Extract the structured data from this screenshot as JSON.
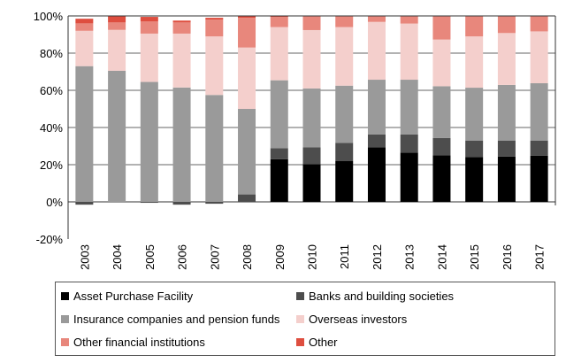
{
  "chart_data": {
    "type": "bar",
    "stacked": true,
    "title": "",
    "xlabel": "",
    "ylabel": "",
    "ylim": [
      -20,
      100
    ],
    "yticks": [
      "-20%",
      "0%",
      "20%",
      "40%",
      "60%",
      "80%",
      "100%"
    ],
    "ytick_values": [
      -20,
      0,
      20,
      40,
      60,
      80,
      100
    ],
    "grid": true,
    "legend_position": "bottom",
    "categories": [
      "2003",
      "2004",
      "2005",
      "2006",
      "2007",
      "2008",
      "2009",
      "2010",
      "2011",
      "2012",
      "2013",
      "2014",
      "2015",
      "2016",
      "2017"
    ],
    "series": [
      {
        "name": "Asset Purchase Facility",
        "color": "#000000",
        "values": [
          0,
          0,
          0,
          0,
          0,
          0,
          22.9,
          20.2,
          21.9,
          29.4,
          26.5,
          25.1,
          24.1,
          24.4,
          24.8
        ]
      },
      {
        "name": "Banks and building societies",
        "color": "#4d4d4d",
        "values": [
          -1.5,
          0,
          -0.5,
          -1.5,
          -1,
          4,
          6,
          9.2,
          9.8,
          6.8,
          9.7,
          9.3,
          8.9,
          8.6,
          8.2
        ]
      },
      {
        "name": "Insurance companies and pension funds",
        "color": "#9a9a9a",
        "values": [
          73,
          70.5,
          64.5,
          61.5,
          57.5,
          46,
          36.5,
          31.6,
          30.8,
          29.5,
          29.5,
          27.8,
          28.4,
          29.9,
          30.8
        ]
      },
      {
        "name": "Overseas investors",
        "color": "#f4cfcc",
        "values": [
          19,
          22,
          26,
          29,
          31.5,
          33,
          28.6,
          31.4,
          31.5,
          31.1,
          30.2,
          25.1,
          27.6,
          27.9,
          27.9
        ]
      },
      {
        "name": "Other financial institutions",
        "color": "#e8877c",
        "values": [
          4,
          4,
          6.5,
          6,
          9,
          16,
          5.5,
          7.6,
          6,
          3.2,
          4.1,
          12.7,
          11,
          9.2,
          8.3
        ]
      },
      {
        "name": "Other",
        "color": "#de4e3f",
        "values": [
          2.5,
          3.5,
          2.5,
          1,
          1,
          1,
          0.5,
          0,
          0,
          0,
          0,
          0,
          0,
          0,
          0
        ]
      }
    ]
  }
}
